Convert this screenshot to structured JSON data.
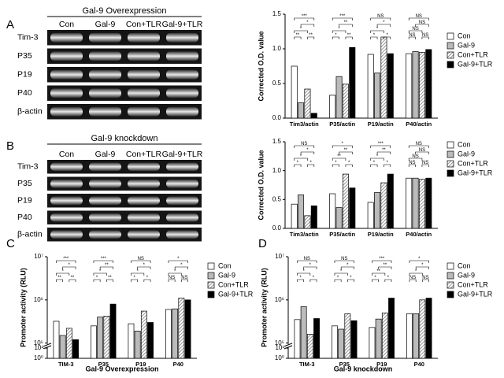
{
  "panel_labels": [
    "A",
    "B",
    "C",
    "D"
  ],
  "blots": [
    {
      "title": "Gal-9 Overexpression",
      "lanes": [
        "Con",
        "Gal-9",
        "Con+TLR",
        "Gal-9+TLR"
      ],
      "rows": [
        "Tim-3",
        "P35",
        "P19",
        "P40",
        "β-actin"
      ]
    },
    {
      "title": "Gal-9 knockdown",
      "lanes": [
        "Con",
        "Gal-9",
        "Con+TLR",
        "Gal-9+TLR"
      ],
      "rows": [
        "Tim-3",
        "P35",
        "P19",
        "P40",
        "β-actin"
      ]
    }
  ],
  "chart_data": [
    {
      "type": "bar",
      "ylabel": "Corrected O.D. value",
      "categories": [
        "Tim3/actin",
        "P35/actin",
        "P19/actin",
        "P40/actin"
      ],
      "series": [
        {
          "name": "Con",
          "color": "#ffffff",
          "values": [
            0.75,
            0.33,
            0.92,
            0.93
          ]
        },
        {
          "name": "Gal-9",
          "color": "#bbbbbb",
          "values": [
            0.22,
            0.6,
            0.65,
            0.96
          ]
        },
        {
          "name": "Con+TLR",
          "color": "#777777",
          "hatch": true,
          "values": [
            0.42,
            0.49,
            1.17,
            0.95
          ]
        },
        {
          "name": "Gal-9+TLR",
          "color": "#000000",
          "values": [
            0.07,
            1.02,
            0.93,
            0.99
          ]
        }
      ],
      "ylim": [
        0,
        1.5
      ],
      "yticks": [
        {
          "value": 0,
          "label": "0.0"
        },
        0.5,
        {
          "value": 1,
          "label": "1.0"
        },
        1.5
      ],
      "legend": "right",
      "comparisons": [
        [
          {
            "label": "***",
            "between": [
              "Con",
              "Gal-9+TLR"
            ]
          },
          {
            "label": "*",
            "between": [
              "Gal-9",
              "Gal-9+TLR"
            ]
          },
          {
            "label": "*",
            "between": [
              "Con",
              "Con+TLR"
            ]
          },
          {
            "label": "**",
            "between": [
              "Con",
              "Gal-9"
            ]
          },
          {
            "label": "**",
            "between": [
              "Con+TLR",
              "Gal-9+TLR"
            ]
          }
        ],
        [
          {
            "label": "***",
            "between": [
              "Con",
              "Gal-9+TLR"
            ]
          },
          {
            "label": "**",
            "between": [
              "Gal-9",
              "Gal-9+TLR"
            ]
          },
          {
            "label": "*",
            "between": [
              "Con",
              "Con+TLR"
            ]
          },
          {
            "label": "*",
            "between": [
              "Con",
              "Gal-9"
            ]
          },
          {
            "label": "**",
            "between": [
              "Con+TLR",
              "Gal-9+TLR"
            ]
          }
        ],
        [
          {
            "label": "NS",
            "between": [
              "Con",
              "Gal-9+TLR"
            ]
          },
          {
            "label": "*",
            "between": [
              "Gal-9",
              "Gal-9+TLR"
            ]
          },
          {
            "label": "*",
            "between": [
              "Con",
              "Con+TLR"
            ]
          },
          {
            "label": "*",
            "between": [
              "Con",
              "Gal-9"
            ]
          },
          {
            "label": "*",
            "between": [
              "Con+TLR",
              "Gal-9+TLR"
            ]
          }
        ],
        [
          {
            "label": "NS",
            "between": [
              "Con",
              "Gal-9+TLR"
            ]
          },
          {
            "label": "NS",
            "between": [
              "Gal-9",
              "Gal-9+TLR"
            ]
          },
          {
            "label": "NS",
            "between": [
              "Con",
              "Con+TLR"
            ]
          },
          {
            "label": "NS",
            "between": [
              "Con",
              "Gal-9"
            ]
          },
          {
            "label": "NS",
            "between": [
              "Con+TLR",
              "Gal-9+TLR"
            ]
          }
        ]
      ]
    },
    {
      "type": "bar",
      "ylabel": "Corrected O.D. value",
      "categories": [
        "Tim3/actin",
        "P35/actin",
        "P19/actin",
        "P40/actin"
      ],
      "series": [
        {
          "name": "Con",
          "color": "#ffffff",
          "values": [
            0.42,
            0.6,
            0.45,
            0.87
          ]
        },
        {
          "name": "Gal-9",
          "color": "#bbbbbb",
          "values": [
            0.58,
            0.36,
            0.62,
            0.87
          ]
        },
        {
          "name": "Con+TLR",
          "color": "#777777",
          "hatch": true,
          "values": [
            0.22,
            0.94,
            0.79,
            0.85
          ]
        },
        {
          "name": "Gal-9+TLR",
          "color": "#000000",
          "values": [
            0.39,
            0.7,
            0.94,
            0.87
          ]
        }
      ],
      "ylim": [
        0,
        1.5
      ],
      "yticks": [
        {
          "value": 0,
          "label": "0.0"
        },
        0.5,
        {
          "value": 1,
          "label": "1.0"
        },
        1.5
      ],
      "legend": "right",
      "comparisons": [
        [
          {
            "label": "NS",
            "between": [
              "Con",
              "Gal-9+TLR"
            ]
          },
          {
            "label": "*",
            "between": [
              "Gal-9",
              "Gal-9+TLR"
            ]
          },
          {
            "label": "*",
            "between": [
              "Con",
              "Con+TLR"
            ]
          },
          {
            "label": "*",
            "between": [
              "Con",
              "Gal-9"
            ]
          },
          {
            "label": "*",
            "between": [
              "Con+TLR",
              "Gal-9+TLR"
            ]
          }
        ],
        [
          {
            "label": "*",
            "between": [
              "Con",
              "Gal-9+TLR"
            ]
          },
          {
            "label": "**",
            "between": [
              "Gal-9",
              "Gal-9+TLR"
            ]
          },
          {
            "label": "**",
            "between": [
              "Con",
              "Con+TLR"
            ]
          },
          {
            "label": "*",
            "between": [
              "Con",
              "Gal-9"
            ]
          },
          {
            "label": "*",
            "between": [
              "Con+TLR",
              "Gal-9+TLR"
            ]
          }
        ],
        [
          {
            "label": "***",
            "between": [
              "Con",
              "Gal-9+TLR"
            ]
          },
          {
            "label": "**",
            "between": [
              "Gal-9",
              "Gal-9+TLR"
            ]
          },
          {
            "label": "*",
            "between": [
              "Con",
              "Con+TLR"
            ]
          },
          {
            "label": "*",
            "between": [
              "Con",
              "Gal-9"
            ]
          },
          {
            "label": "*",
            "between": [
              "Con+TLR",
              "Gal-9+TLR"
            ]
          }
        ],
        [
          {
            "label": "NS",
            "between": [
              "Con",
              "Gal-9+TLR"
            ]
          },
          {
            "label": "NS",
            "between": [
              "Gal-9",
              "Gal-9+TLR"
            ]
          },
          {
            "label": "NS",
            "between": [
              "Con",
              "Con+TLR"
            ]
          },
          {
            "label": "NS",
            "between": [
              "Con",
              "Gal-9"
            ]
          },
          {
            "label": "NS",
            "between": [
              "Con+TLR",
              "Gal-9+TLR"
            ]
          }
        ]
      ]
    },
    {
      "type": "bar",
      "ylabel": "Promoter activity (RLU)",
      "xlabel": "Gal-9 Overexpression",
      "categories": [
        "TIM-3",
        "P35",
        "P19",
        "P40"
      ],
      "series": [
        {
          "name": "Con",
          "color": "#ffffff",
          "values": [
            320000,
            250000,
            280000,
            600000
          ]
        },
        {
          "name": "Gal-9",
          "color": "#bbbbbb",
          "values": [
            150000,
            400000,
            190000,
            620000
          ]
        },
        {
          "name": "Con+TLR",
          "color": "#777777",
          "hatch": true,
          "values": [
            220000,
            420000,
            550000,
            1100000
          ]
        },
        {
          "name": "Gal-9+TLR",
          "color": "#000000",
          "values": [
            120000,
            800000,
            300000,
            1000000
          ]
        }
      ],
      "log": true,
      "ylim": [
        1,
        10000000
      ],
      "axis_break": [
        10,
        100000
      ],
      "yticks": [
        {
          "value": 1,
          "label": "10⁰"
        },
        {
          "value": 10,
          "label": "10¹"
        },
        {
          "value": 100000,
          "label": "10⁵"
        },
        {
          "value": 1000000,
          "label": "10⁶"
        },
        {
          "value": 10000000,
          "label": "10⁷"
        }
      ],
      "legend": "right",
      "comparisons": [
        [
          {
            "label": "***",
            "between": [
              "Con",
              "Gal-9+TLR"
            ]
          },
          {
            "label": "*",
            "between": [
              "Gal-9",
              "Gal-9+TLR"
            ]
          },
          {
            "label": "*",
            "between": [
              "Con",
              "Con+TLR"
            ]
          },
          {
            "label": "**",
            "between": [
              "Con",
              "Gal-9"
            ]
          },
          {
            "label": "**",
            "between": [
              "Con+TLR",
              "Gal-9+TLR"
            ]
          }
        ],
        [
          {
            "label": "***",
            "between": [
              "Con",
              "Gal-9+TLR"
            ]
          },
          {
            "label": "**",
            "between": [
              "Gal-9",
              "Gal-9+TLR"
            ]
          },
          {
            "label": "*",
            "between": [
              "Con",
              "Con+TLR"
            ]
          },
          {
            "label": "*",
            "between": [
              "Con",
              "Gal-9"
            ]
          },
          {
            "label": "**",
            "between": [
              "Con+TLR",
              "Gal-9+TLR"
            ]
          }
        ],
        [
          {
            "label": "NS",
            "between": [
              "Con",
              "Gal-9+TLR"
            ]
          },
          {
            "label": "*",
            "between": [
              "Gal-9",
              "Gal-9+TLR"
            ]
          },
          {
            "label": "*",
            "between": [
              "Con",
              "Con+TLR"
            ]
          },
          {
            "label": "*",
            "between": [
              "Con",
              "Gal-9"
            ]
          },
          {
            "label": "*",
            "between": [
              "Con+TLR",
              "Gal-9+TLR"
            ]
          }
        ],
        [
          {
            "label": "*",
            "between": [
              "Con",
              "Gal-9+TLR"
            ]
          },
          {
            "label": "*",
            "between": [
              "Gal-9",
              "Gal-9+TLR"
            ]
          },
          {
            "label": "*",
            "between": [
              "Con",
              "Con+TLR"
            ]
          },
          {
            "label": "NS",
            "between": [
              "Con",
              "Gal-9"
            ]
          },
          {
            "label": "NS",
            "between": [
              "Con+TLR",
              "Gal-9+TLR"
            ]
          }
        ]
      ]
    },
    {
      "type": "bar",
      "ylabel": "Promoter activity (RLU)",
      "xlabel": "Gal-9 knockdown",
      "categories": [
        "TIM-3",
        "P35",
        "P19",
        "P40"
      ],
      "series": [
        {
          "name": "Con",
          "color": "#ffffff",
          "values": [
            350000,
            250000,
            230000,
            480000
          ]
        },
        {
          "name": "Gal-9",
          "color": "#bbbbbb",
          "values": [
            700000,
            210000,
            360000,
            480000
          ]
        },
        {
          "name": "Con+TLR",
          "color": "#777777",
          "hatch": true,
          "values": [
            160000,
            480000,
            500000,
            1000000
          ]
        },
        {
          "name": "Gal-9+TLR",
          "color": "#000000",
          "values": [
            370000,
            330000,
            1100000,
            1100000
          ]
        }
      ],
      "log": true,
      "ylim": [
        1,
        10000000
      ],
      "axis_break": [
        10,
        100000
      ],
      "yticks": [
        {
          "value": 1,
          "label": "10⁰"
        },
        {
          "value": 10,
          "label": "10¹"
        },
        {
          "value": 100000,
          "label": "10⁵"
        },
        {
          "value": 1000000,
          "label": "10⁶"
        },
        {
          "value": 10000000,
          "label": "10⁷"
        }
      ],
      "legend": "right",
      "comparisons": [
        [
          {
            "label": "NS",
            "between": [
              "Con",
              "Gal-9+TLR"
            ]
          },
          {
            "label": "*",
            "between": [
              "Gal-9",
              "Gal-9+TLR"
            ]
          },
          {
            "label": "*",
            "between": [
              "Con",
              "Con+TLR"
            ]
          },
          {
            "label": "*",
            "between": [
              "Con",
              "Gal-9"
            ]
          },
          {
            "label": "*",
            "between": [
              "Con+TLR",
              "Gal-9+TLR"
            ]
          }
        ],
        [
          {
            "label": "NS",
            "between": [
              "Con",
              "Gal-9+TLR"
            ]
          },
          {
            "label": "*",
            "between": [
              "Gal-9",
              "Gal-9+TLR"
            ]
          },
          {
            "label": "*",
            "between": [
              "Con",
              "Con+TLR"
            ]
          },
          {
            "label": "*",
            "between": [
              "Con",
              "Gal-9"
            ]
          },
          {
            "label": "*",
            "between": [
              "Con+TLR",
              "Gal-9+TLR"
            ]
          }
        ],
        [
          {
            "label": "***",
            "between": [
              "Con",
              "Gal-9+TLR"
            ]
          },
          {
            "label": "**",
            "between": [
              "Gal-9",
              "Gal-9+TLR"
            ]
          },
          {
            "label": "**",
            "between": [
              "Con",
              "Con+TLR"
            ]
          },
          {
            "label": "*",
            "between": [
              "Con",
              "Gal-9"
            ]
          },
          {
            "label": "*",
            "between": [
              "Con+TLR",
              "Gal-9+TLR"
            ]
          }
        ],
        [
          {
            "label": "*",
            "between": [
              "Con",
              "Gal-9+TLR"
            ]
          },
          {
            "label": "*",
            "between": [
              "Gal-9",
              "Gal-9+TLR"
            ]
          },
          {
            "label": "*",
            "between": [
              "Con",
              "Con+TLR"
            ]
          },
          {
            "label": "NS",
            "between": [
              "Con",
              "Gal-9"
            ]
          },
          {
            "label": "NS",
            "between": [
              "Con+TLR",
              "Gal-9+TLR"
            ]
          }
        ]
      ]
    }
  ]
}
